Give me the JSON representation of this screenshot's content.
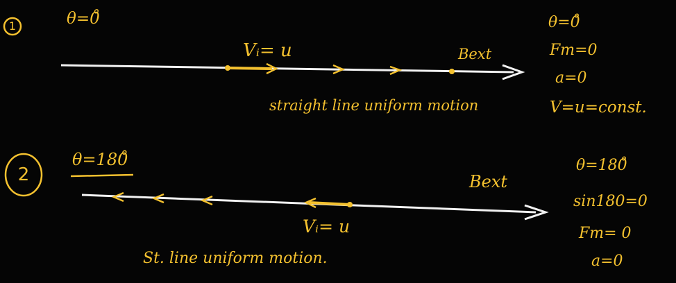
{
  "colors": {
    "ink": "#f4c12f",
    "chalk": "#f2f2f2",
    "board": "#050505"
  },
  "case1": {
    "number": "1",
    "angle": "θ=0̊",
    "velocity": "Vᵢ= u",
    "field": "Bext",
    "results": [
      "θ=0̊",
      "Fm=0",
      "a=0",
      "V=u=const."
    ],
    "caption": "straight line uniform motion"
  },
  "case2": {
    "number": "2",
    "angle": "θ=180̊",
    "velocity": "Vᵢ= u",
    "field": "Bext",
    "results": [
      "θ=180̊",
      "sin180=0",
      "Fm= 0",
      "a=0"
    ],
    "caption": "St. line uniform motion."
  }
}
